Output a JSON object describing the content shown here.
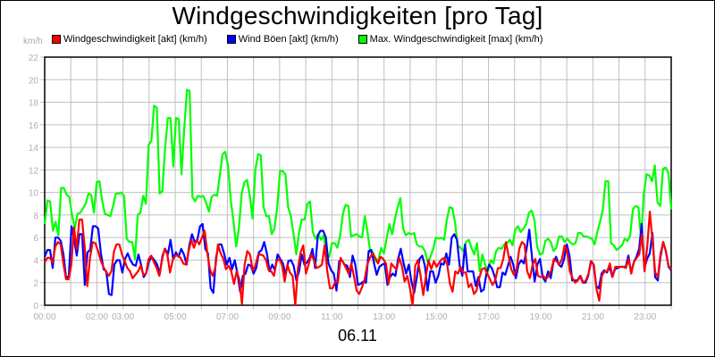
{
  "title": "Windgeschwindigkeiten [pro Tag]",
  "unit_label": "km/h",
  "date_label": "06.11",
  "legend": [
    {
      "label": "Windgeschwindigkeit [akt] (km/h)",
      "color": "#ff0000"
    },
    {
      "label": "Wind Böen [akt] (km/h)",
      "color": "#0000ff"
    },
    {
      "label": "Max. Windgeschwindigkeit [max] (km/h)",
      "color": "#00ff00"
    }
  ],
  "chart_data": {
    "type": "line",
    "title": "Windgeschwindigkeiten [pro Tag]",
    "xlabel": "06.11",
    "ylabel": "km/h",
    "ylim": [
      0,
      22
    ],
    "yticks": [
      0,
      2,
      4,
      6,
      8,
      10,
      12,
      14,
      16,
      18,
      20,
      22
    ],
    "xlim_hours": [
      0,
      24
    ],
    "xtick_labels": [
      {
        "h": 0,
        "label": "00:00"
      },
      {
        "h": 2,
        "label": "02:00"
      },
      {
        "h": 3,
        "label": "03:00"
      },
      {
        "h": 5,
        "label": "05:00"
      },
      {
        "h": 7,
        "label": "07:00"
      },
      {
        "h": 9,
        "label": "09:00"
      },
      {
        "h": 11,
        "label": "11:00"
      },
      {
        "h": 13,
        "label": "13:00"
      },
      {
        "h": 15,
        "label": "15:00"
      },
      {
        "h": 17,
        "label": "17:00"
      },
      {
        "h": 19,
        "label": "19:00"
      },
      {
        "h": 21,
        "label": "21:00"
      },
      {
        "h": 23,
        "label": "23:00"
      }
    ],
    "grid": true,
    "legend_position": "top",
    "x_step_minutes": 15,
    "series": [
      {
        "name": "Max. Windgeschwindigkeit [max] (km/h)",
        "color": "#00ff00",
        "values": [
          7.2,
          9.3,
          9.2,
          6.6,
          7.4,
          6.2,
          10.4,
          10.4,
          9.8,
          9.6,
          8.0,
          6.8,
          8.1,
          8.2,
          8.6,
          9.0,
          9.9,
          9.8,
          8.2,
          10.9,
          11.0,
          9.3,
          8.1,
          8.0,
          7.9,
          8.8,
          9.9,
          9.9,
          10.0,
          9.7,
          5.9,
          5.6,
          5.6,
          4.1,
          8.0,
          8.2,
          9.7,
          9.0,
          14.2,
          14.6,
          17.7,
          17.5,
          9.9,
          10.1,
          13.9,
          16.6,
          16.6,
          12.3,
          16.6,
          16.5,
          11.6,
          15.6,
          19.1,
          19.0,
          9.6,
          9.2,
          9.7,
          9.6,
          9.7,
          9.1,
          8.3,
          9.6,
          9.8,
          9.7,
          11.5,
          13.4,
          13.6,
          12.4,
          9.3,
          7.5,
          5.2,
          6.8,
          9.9,
          10.9,
          11.1,
          9.6,
          7.7,
          12.0,
          13.4,
          13.3,
          8.7,
          7.9,
          7.9,
          6.3,
          6.8,
          8.7,
          11.9,
          11.9,
          11.6,
          8.7,
          7.9,
          6.2,
          4.5,
          6.5,
          7.6,
          7.6,
          9.0,
          9.2,
          6.5,
          5.9,
          6.3,
          5.8,
          6.2,
          4.3,
          4.3,
          5.5,
          5.5,
          5.1,
          6.2,
          8.1,
          8.9,
          8.8,
          6.1,
          6.2,
          6.3,
          6.1,
          6.0,
          7.9,
          6.5,
          4.7,
          4.7,
          3.9,
          4.1,
          5.1,
          4.6,
          5.9,
          7.2,
          6.3,
          7.6,
          8.7,
          9.5,
          6.8,
          6.2,
          6.4,
          6.3,
          6.4,
          5.4,
          5.2,
          5.2,
          4.8,
          3.8,
          4.3,
          5.0,
          6.0,
          5.9,
          6.0,
          5.8,
          7.6,
          8.7,
          8.6,
          7.3,
          5.3,
          5.1,
          4.8,
          5.6,
          5.8,
          5.1,
          4.5,
          5.5,
          3.0,
          4.5,
          3.6,
          3.0,
          4.0,
          3.7,
          4.8,
          5.1,
          5.0,
          5.4,
          5.5,
          5.8,
          5.3,
          6.7,
          7.0,
          6.5,
          6.8,
          7.2,
          8.2,
          8.4,
          7.6,
          5.2,
          4.5,
          4.6,
          5.7,
          5.9,
          5.6,
          4.8,
          5.1,
          6.1,
          6.1,
          5.6,
          5.9,
          5.6,
          5.4,
          5.5,
          6.4,
          6.4,
          6.1,
          6.1,
          6.0,
          5.9,
          5.4,
          6.5,
          7.4,
          8.5,
          11.0,
          11.0,
          5.5,
          5.3,
          4.9,
          5.1,
          5.3,
          5.9,
          5.7,
          6.2,
          8.5,
          8.8,
          8.7,
          5.9,
          9.9,
          11.6,
          11.5,
          11.0,
          12.4,
          9.1,
          8.8,
          12.1,
          12.2,
          11.7,
          8.5
        ]
      },
      {
        "name": "Wind Böen [akt] (km/h)",
        "color": "#0000ff",
        "values": [
          4.3,
          4.9,
          4.9,
          3.3,
          6.0,
          6.0,
          5.7,
          4.5,
          2.4,
          2.6,
          7.0,
          5.8,
          4.4,
          6.3,
          6.3,
          1.8,
          4.7,
          4.9,
          7.0,
          7.0,
          6.8,
          4.6,
          3.2,
          3.0,
          1.0,
          0.9,
          3.6,
          4.0,
          4.0,
          2.9,
          4.1,
          4.6,
          4.0,
          3.6,
          3.5,
          4.5,
          3.6,
          2.5,
          2.9,
          3.9,
          4.3,
          4.0,
          3.6,
          2.8,
          4.4,
          5.0,
          4.5,
          5.8,
          4.1,
          4.7,
          4.3,
          5.0,
          4.5,
          3.6,
          5.3,
          6.3,
          5.6,
          5.8,
          7.0,
          7.2,
          5.0,
          4.6,
          1.5,
          1.1,
          4.2,
          5.4,
          5.4,
          4.6,
          3.6,
          4.2,
          3.2,
          4.0,
          2.8,
          1.2,
          2.6,
          2.8,
          3.6,
          3.5,
          2.8,
          3.3,
          4.7,
          4.9,
          5.6,
          4.6,
          3.0,
          3.6,
          3.1,
          4.5,
          4.1,
          3.7,
          2.7,
          3.9,
          4.0,
          3.5,
          2.2,
          3.0,
          4.5,
          3.6,
          3.8,
          4.2,
          5.0,
          3.3,
          6.2,
          6.6,
          6.6,
          6.0,
          3.7,
          3.1,
          2.8,
          1.3,
          3.9,
          4.0,
          3.6,
          3.5,
          2.5,
          4.4,
          3.6,
          1.8,
          1.9,
          2.1,
          2.0,
          4.8,
          4.9,
          3.7,
          2.7,
          3.4,
          3.6,
          3.7,
          1.8,
          2.5,
          2.8,
          2.6,
          4.1,
          5.0,
          3.8,
          2.8,
          3.6,
          2.1,
          1.1,
          2.5,
          4.1,
          4.4,
          3.5,
          1.3,
          3.0,
          3.0,
          2.0,
          2.6,
          3.7,
          3.6,
          4.6,
          3.6,
          6.0,
          6.3,
          5.8,
          3.5,
          2.6,
          5.4,
          3.0,
          3.0,
          3.0,
          1.7,
          2.5,
          1.2,
          1.4,
          2.8,
          3.6,
          3.3,
          2.6,
          1.6,
          1.6,
          2.9,
          2.7,
          3.5,
          4.3,
          3.6,
          2.4,
          3.6,
          4.0,
          3.7,
          5.0,
          6.7,
          4.3,
          2.1,
          3.6,
          4.1,
          2.5,
          2.1,
          3.0,
          2.4,
          3.8,
          4.3,
          3.6,
          3.4,
          4.1,
          5.4,
          4.4,
          2.2,
          2.2,
          2.2,
          2.6,
          2.0,
          2.0,
          2.6,
          3.9,
          3.6,
          1.7,
          1.5,
          2.8,
          3.1,
          2.9,
          3.4,
          2.5,
          3.2,
          3.3,
          3.4,
          3.4,
          3.4,
          4.4,
          2.9,
          3.8,
          4.3,
          5.0,
          7.2,
          3.3,
          4.1,
          4.6,
          6.4,
          2.5,
          2.2,
          4.3,
          5.6,
          4.8,
          3.4,
          3.1
        ]
      },
      {
        "name": "Windgeschwindigkeit [akt] (km/h)",
        "color": "#ff0000",
        "values": [
          3.8,
          4.2,
          4.2,
          3.8,
          5.2,
          5.6,
          5.4,
          3.7,
          2.3,
          2.3,
          3.6,
          6.9,
          5.0,
          7.6,
          7.6,
          5.2,
          1.7,
          4.2,
          5.6,
          5.5,
          4.8,
          4.0,
          3.4,
          3.0,
          2.6,
          3.0,
          4.8,
          5.4,
          5.4,
          4.5,
          3.9,
          3.3,
          3.0,
          2.4,
          2.7,
          3.0,
          3.5,
          2.7,
          2.8,
          4.1,
          4.4,
          3.8,
          3.3,
          2.6,
          4.0,
          5.0,
          4.5,
          2.9,
          4.0,
          4.4,
          4.4,
          4.2,
          3.7,
          3.6,
          4.8,
          5.8,
          5.1,
          5.8,
          5.4,
          6.0,
          6.6,
          4.6,
          3.2,
          2.6,
          3.3,
          5.4,
          4.6,
          4.1,
          3.2,
          3.5,
          3.0,
          1.9,
          3.0,
          2.3,
          0.1,
          3.6,
          4.8,
          4.5,
          3.1,
          3.5,
          4.4,
          4.5,
          4.4,
          4.0,
          3.1,
          3.0,
          2.6,
          3.9,
          4.1,
          3.6,
          2.1,
          3.6,
          2.9,
          2.6,
          0.0,
          3.3,
          4.7,
          5.3,
          2.8,
          3.6,
          4.5,
          4.0,
          3.3,
          3.4,
          3.6,
          5.3,
          3.0,
          1.5,
          1.5,
          2.1,
          2.0,
          4.2,
          3.8,
          3.3,
          2.8,
          3.7,
          2.6,
          1.3,
          1.0,
          1.6,
          2.3,
          3.6,
          4.2,
          4.6,
          4.2,
          3.7,
          4.3,
          4.1,
          3.7,
          1.9,
          3.7,
          3.4,
          3.2,
          4.2,
          3.5,
          2.1,
          2.6,
          1.5,
          0.0,
          3.5,
          4.0,
          2.6,
          0.9,
          2.6,
          4.0,
          3.2,
          3.9,
          3.4,
          3.8,
          4.1,
          4.2,
          3.6,
          1.9,
          1.2,
          3.0,
          2.8,
          3.4,
          2.9,
          2.9,
          1.6,
          1.9,
          1.0,
          1.3,
          2.4,
          3.2,
          3.3,
          2.8,
          2.3,
          1.8,
          2.2,
          3.3,
          3.3,
          4.1,
          5.6,
          4.4,
          3.2,
          2.7,
          3.2,
          5.0,
          5.6,
          5.4,
          3.0,
          2.4,
          3.6,
          4.1,
          2.6,
          2.5,
          2.6,
          2.3,
          2.6,
          3.1,
          4.1,
          3.9,
          3.6,
          4.1,
          5.3,
          4.8,
          3.0,
          2.4,
          2.0,
          2.2,
          2.6,
          2.0,
          2.2,
          2.8,
          3.9,
          3.6,
          1.4,
          0.4,
          2.6,
          3.0,
          3.0,
          3.7,
          2.5,
          3.4,
          3.4,
          3.4,
          3.4,
          3.3,
          4.1,
          2.8,
          3.8,
          4.2,
          4.5,
          6.3,
          3.0,
          5.2,
          8.3,
          5.7,
          2.9,
          2.5,
          4.6,
          5.6,
          4.8,
          3.5,
          3.2
        ]
      }
    ]
  }
}
